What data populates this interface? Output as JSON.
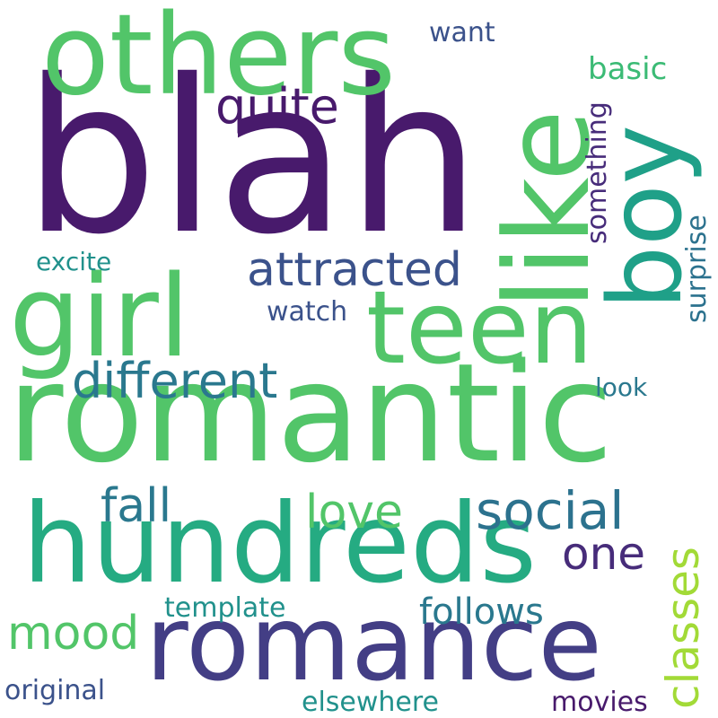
{
  "words": [
    {
      "text": "blah",
      "color": "#481a6c"
    },
    {
      "text": "romantic",
      "color": "#52c569"
    },
    {
      "text": "others",
      "color": "#52c569"
    },
    {
      "text": "hundreds",
      "color": "#25ab82"
    },
    {
      "text": "romance",
      "color": "#433e85"
    },
    {
      "text": "girl",
      "color": "#52c569"
    },
    {
      "text": "teen",
      "color": "#52c569"
    },
    {
      "text": "like",
      "color": "#52c569"
    },
    {
      "text": "boy",
      "color": "#1fa088"
    },
    {
      "text": "attracted",
      "color": "#3b528b"
    },
    {
      "text": "different",
      "color": "#2a788e"
    },
    {
      "text": "social",
      "color": "#2c728e"
    },
    {
      "text": "quite",
      "color": "#481a6c"
    },
    {
      "text": "fall",
      "color": "#2a788e"
    },
    {
      "text": "love",
      "color": "#52c569"
    },
    {
      "text": "one",
      "color": "#472c7a"
    },
    {
      "text": "mood",
      "color": "#52c569"
    },
    {
      "text": "follows",
      "color": "#2a788e"
    },
    {
      "text": "classes",
      "color": "#a2da37"
    },
    {
      "text": "basic",
      "color": "#3bbb75"
    },
    {
      "text": "want",
      "color": "#3b528b"
    },
    {
      "text": "excite",
      "color": "#21918c"
    },
    {
      "text": "watch",
      "color": "#3b528b"
    },
    {
      "text": "look",
      "color": "#2a788e"
    },
    {
      "text": "template",
      "color": "#21918c"
    },
    {
      "text": "original",
      "color": "#3b528b"
    },
    {
      "text": "elsewhere",
      "color": "#21918c"
    },
    {
      "text": "movies",
      "color": "#481a6c"
    },
    {
      "text": "something",
      "color": "#472c7a"
    },
    {
      "text": "surprise",
      "color": "#2c728e"
    }
  ]
}
